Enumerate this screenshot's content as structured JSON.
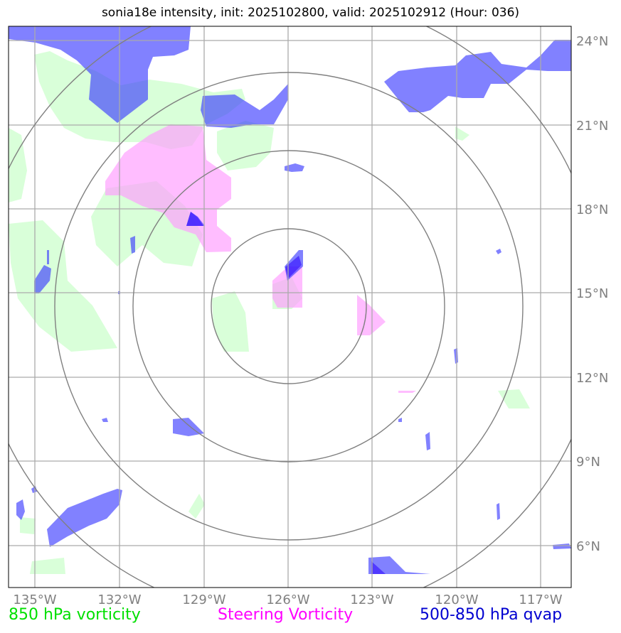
{
  "title": "sonia18e intensity, init: 2025102800, valid: 2025102912 (Hour: 036)",
  "map": {
    "lon_ticks": [
      "135°W",
      "132°W",
      "129°W",
      "126°W",
      "123°W",
      "120°W",
      "117°W"
    ],
    "lat_ticks": [
      "24°N",
      "21°N",
      "18°N",
      "15°N",
      "12°N",
      "9°N",
      "6°N"
    ],
    "storm_center": {
      "lon": -126.0,
      "lat": 14.6
    },
    "range_ring_count": 4
  },
  "legend": {
    "green": "850 hPa vorticity",
    "magenta": "Steering Vorticity",
    "blue": "500-850 hPa qvap"
  },
  "colors": {
    "vorticity_850": "#ccffcc",
    "steering_vorticity": "#ff99ff",
    "qvap": "#3333ff",
    "grid": "#aaaaaa",
    "rings": "#808080",
    "tick_text": "#808080"
  }
}
